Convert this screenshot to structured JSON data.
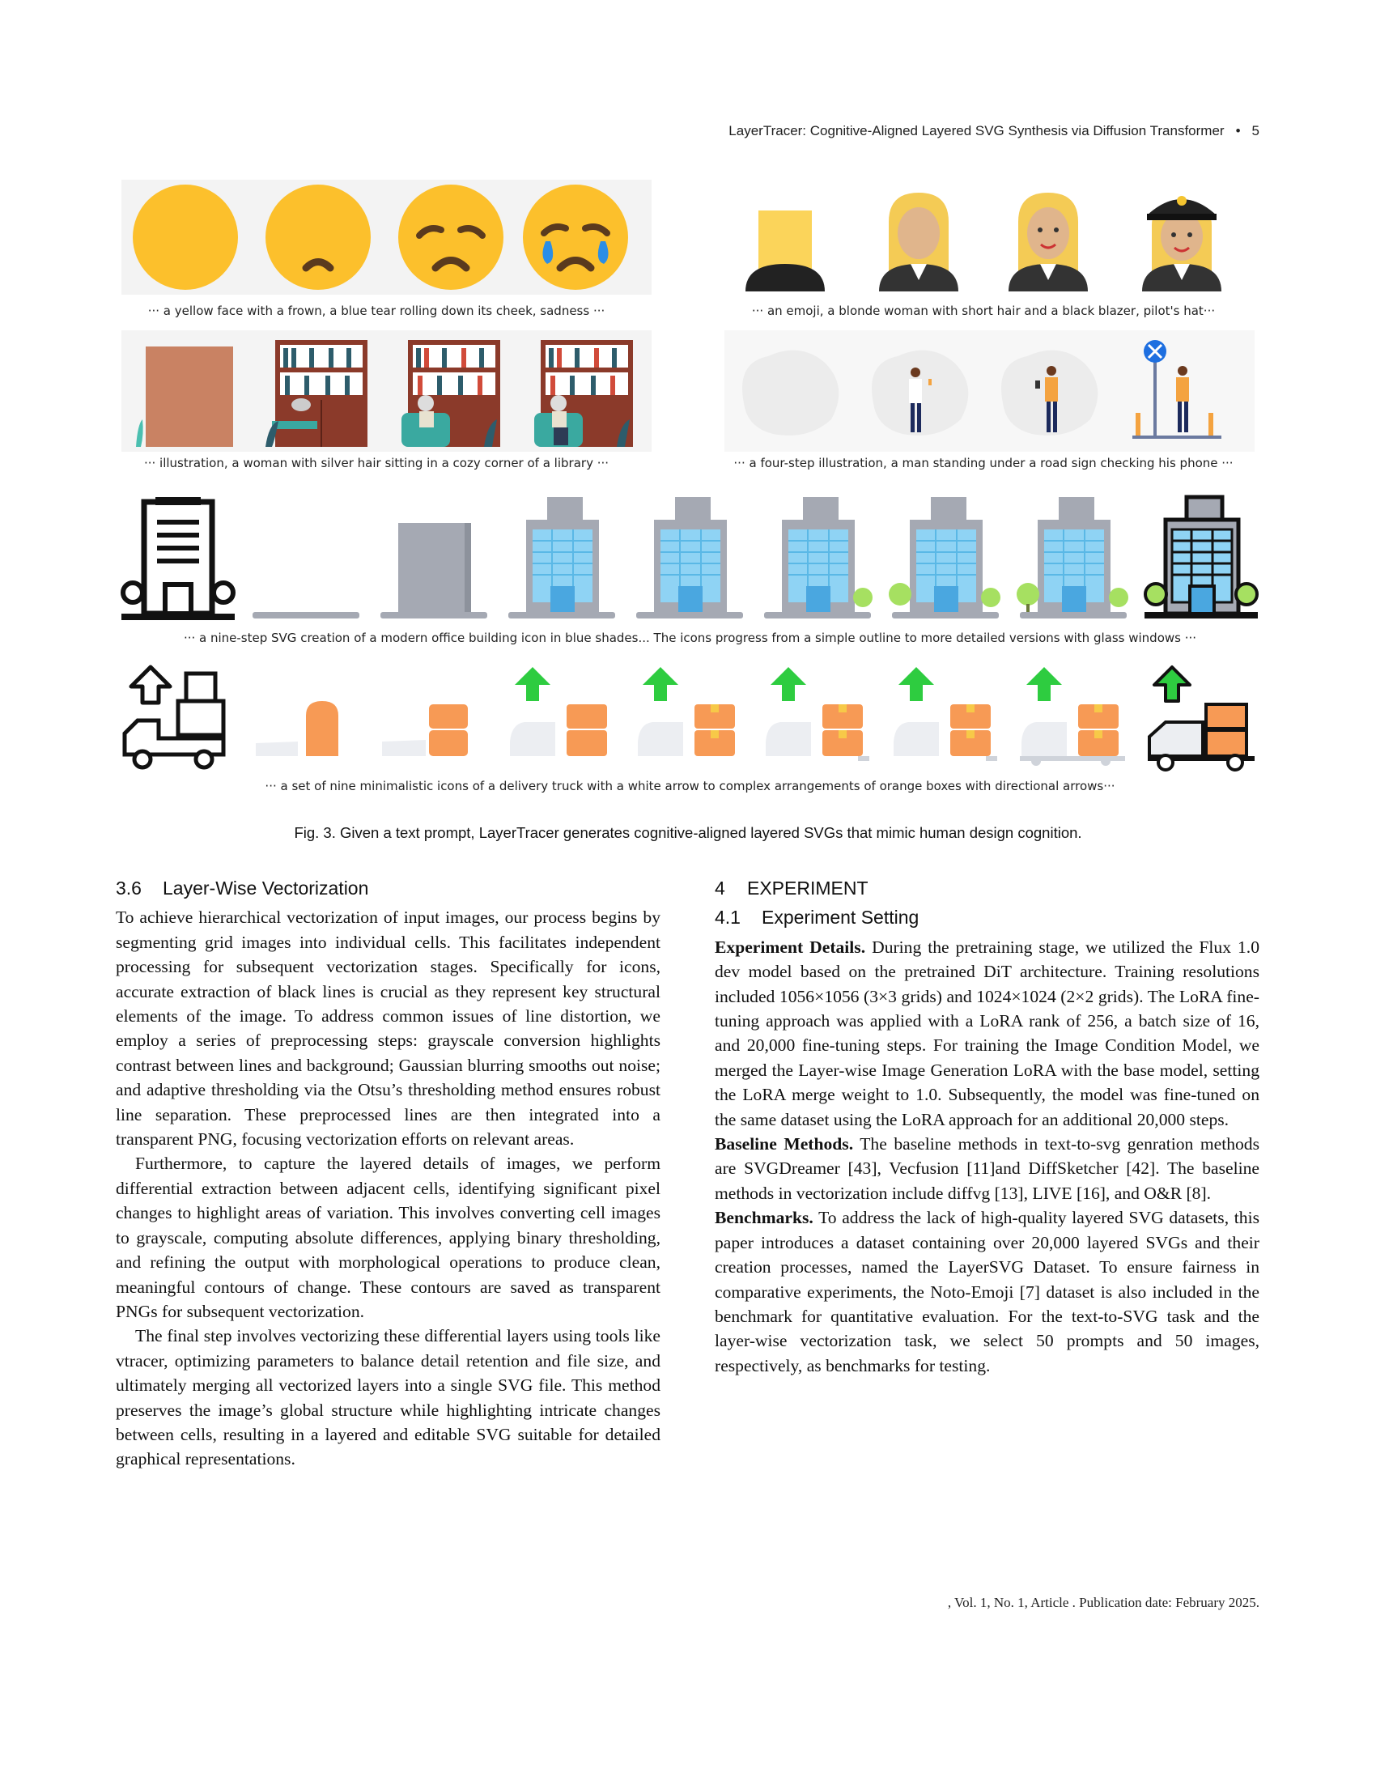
{
  "header": {
    "running_title": "LayerTracer: Cognitive-Aligned Layered SVG Synthesis via Diffusion Transformer",
    "separator": "•",
    "page_number": "5"
  },
  "figure": {
    "captions": {
      "emoji_face": "··· a yellow face with a frown, a blue tear rolling down its cheek, sadness ···",
      "emoji_woman": "··· an emoji, a blonde woman with short hair and a black blazer, pilot's hat···",
      "library": "··· illustration, a woman with silver hair sitting in a cozy corner of a library ···",
      "road_sign": "··· a four-step illustration, a man standing under a road sign checking his phone ···",
      "office": "···  a nine-step SVG creation of a modern office building icon in blue shades... The icons progress from a simple outline to more detailed versions with glass windows ···",
      "truck": "··· a set of nine minimalistic icons of a delivery truck with a white arrow to complex arrangements of orange boxes with directional arrows···"
    },
    "caption": "Fig. 3.  Given a text prompt, LayerTracer generates cognitive-aligned layered SVGs that mimic human design cognition.",
    "colors": {
      "emoji_yellow": "#fcc02c",
      "tear_blue": "#2b8ee6",
      "building_blue": "#8fd3f4",
      "box_orange": "#f79a55",
      "arrow_green": "#2ecc40",
      "bookshelf": "#8b3a2a"
    }
  },
  "left_column": {
    "heading_num": "3.6",
    "heading": "Layer-Wise Vectorization",
    "paragraphs": [
      "To achieve hierarchical vectorization of input images, our process begins by segmenting grid images into individual cells. This facilitates independent processing for subsequent vectorization stages. Specifically for icons, accurate extraction of black lines is crucial as they represent key structural elements of the image. To address common issues of line distortion, we employ a series of preprocessing steps: grayscale conversion highlights contrast between lines and background; Gaussian blurring smooths out noise; and adaptive thresholding via the Otsu’s thresholding method ensures robust line separation. These preprocessed lines are then integrated into a transparent PNG, focusing vectorization efforts on relevant areas.",
      "Furthermore, to capture the layered details of images, we perform differential extraction between adjacent cells, identifying significant pixel changes to highlight areas of variation. This involves converting cell images to grayscale, computing absolute differences, applying binary thresholding, and refining the output with morphological operations to produce clean, meaningful contours of change. These contours are saved as transparent PNGs for subsequent vectorization.",
      "The final step involves vectorizing these differential layers using tools like vtracer, optimizing parameters to balance detail retention and file size, and ultimately merging all vectorized layers into a single SVG file. This method preserves the image’s global structure while highlighting intricate changes between cells, resulting in a layered and editable SVG suitable for detailed graphical representations."
    ]
  },
  "right_column": {
    "section_num": "4",
    "section": "EXPERIMENT",
    "subsection_num": "4.1",
    "subsection": "Experiment Setting",
    "paragraphs": [
      {
        "head": "Experiment Details.",
        "text": " During the pretraining stage, we utilized the Flux 1.0 dev model based on the pretrained DiT architecture. Training resolutions included 1056×1056 (3×3 grids) and 1024×1024 (2×2 grids). The LoRA fine-tuning approach was applied with a LoRA rank of 256, a batch size of 16, and 20,000 fine-tuning steps. For training the Image Condition Model, we merged the Layer-wise Image Generation LoRA with the base model, setting the LoRA merge weight to 1.0. Subsequently, the model was fine-tuned on the same dataset using the LoRA approach for an additional 20,000 steps."
      },
      {
        "head": "Baseline Methods.",
        "text": " The baseline methods in text-to-svg genration methods are SVGDreamer [43], Vecfusion [11]and DiffSketcher [42]. The baseline methods in vectorization include diffvg [13], LIVE [16], and O&R [8]."
      },
      {
        "head": "Benchmarks.",
        "text": " To address the lack of high-quality layered SVG datasets, this paper introduces a dataset containing over 20,000 layered SVGs and their creation processes, named the LayerSVG Dataset. To ensure fairness in comparative experiments, the Noto-Emoji [7] dataset is also included in the benchmark for quantitative evaluation. For the text-to-SVG task and the layer-wise vectorization task, we select 50 prompts and 50 images, respectively, as benchmarks for testing."
      }
    ]
  },
  "footer": ", Vol. 1, No. 1, Article . Publication date: February 2025."
}
